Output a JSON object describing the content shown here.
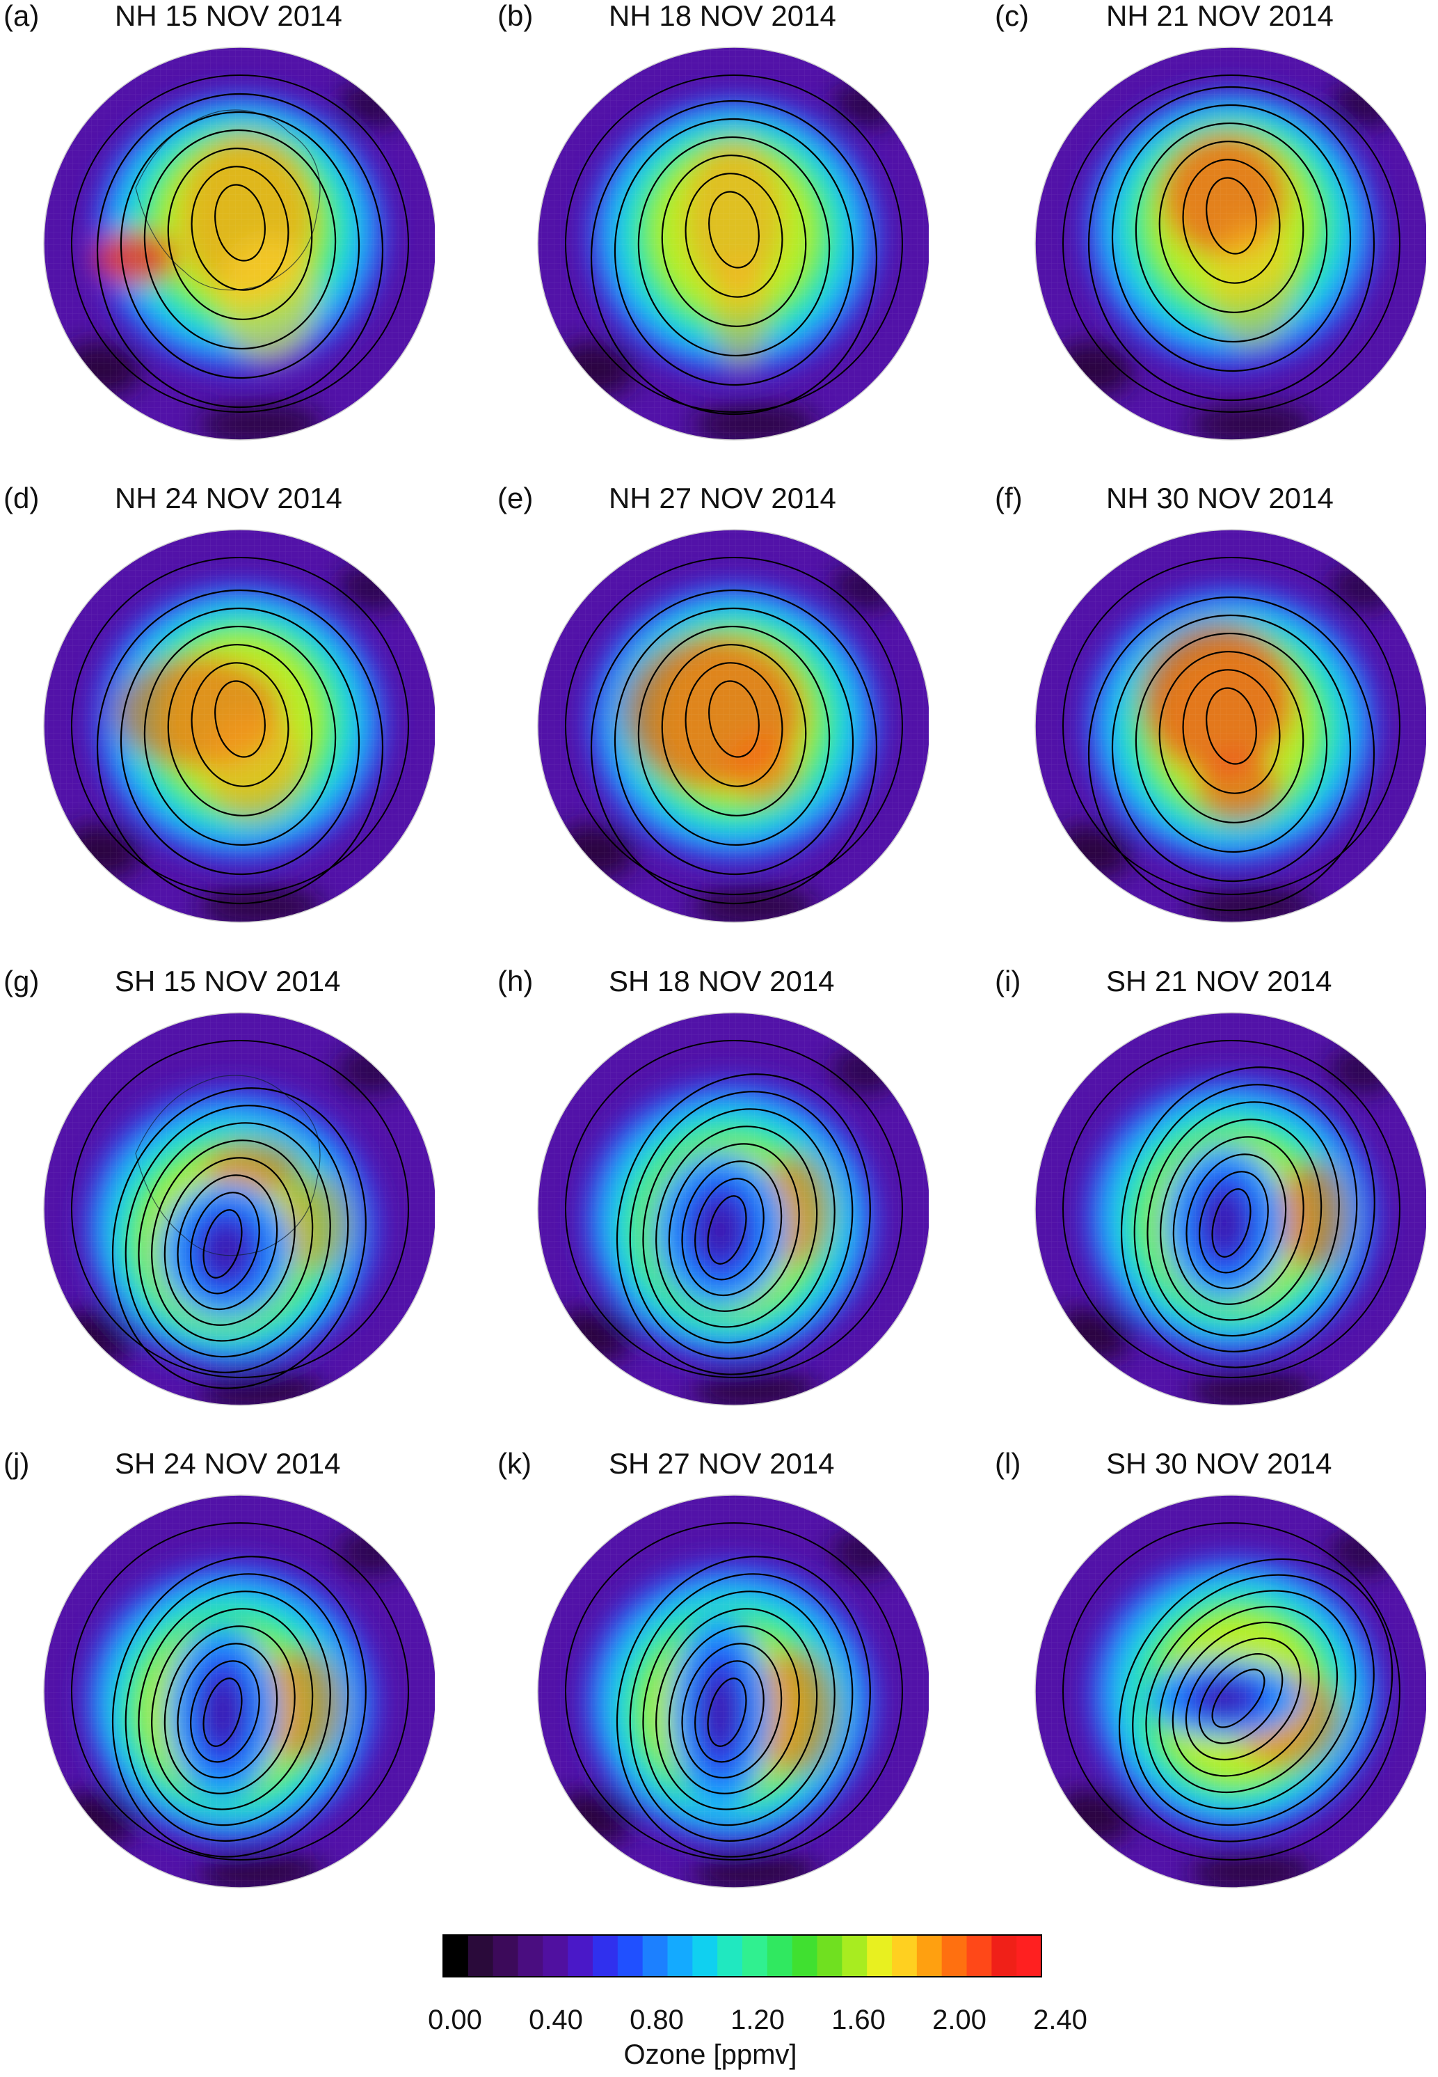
{
  "figure": {
    "panels": [
      {
        "letter": "(a)",
        "title": "NH 15 NOV 2014",
        "hemisphere": "NH",
        "variant": "a"
      },
      {
        "letter": "(b)",
        "title": "NH 18 NOV 2014",
        "hemisphere": "NH",
        "variant": "b"
      },
      {
        "letter": "(c)",
        "title": "NH 21 NOV 2014",
        "hemisphere": "NH",
        "variant": "c"
      },
      {
        "letter": "(d)",
        "title": "NH 24 NOV 2014",
        "hemisphere": "NH",
        "variant": "d"
      },
      {
        "letter": "(e)",
        "title": "NH 27 NOV 2014",
        "hemisphere": "NH",
        "variant": "e"
      },
      {
        "letter": "(f)",
        "title": "NH 30 NOV 2014",
        "hemisphere": "NH",
        "variant": "f"
      },
      {
        "letter": "(g)",
        "title": "SH 15 NOV 2014",
        "hemisphere": "SH",
        "variant": "g"
      },
      {
        "letter": "(h)",
        "title": "SH 18 NOV 2014",
        "hemisphere": "SH",
        "variant": "h"
      },
      {
        "letter": "(i)",
        "title": "SH 21 NOV 2014",
        "hemisphere": "SH",
        "variant": "i"
      },
      {
        "letter": "(j)",
        "title": "SH 24 NOV 2014",
        "hemisphere": "SH",
        "variant": "j"
      },
      {
        "letter": "(k)",
        "title": "SH 27 NOV 2014",
        "hemisphere": "SH",
        "variant": "k"
      },
      {
        "letter": "(l)",
        "title": "SH 30 NOV 2014",
        "hemisphere": "SH",
        "variant": "l"
      }
    ],
    "colorbar": {
      "label": "Ozone [ppmv]",
      "min": 0.0,
      "max": 2.4,
      "step": 0.1,
      "tick_labels": [
        "0.00",
        "0.40",
        "0.80",
        "1.20",
        "1.60",
        "2.00",
        "2.40"
      ],
      "colors": [
        "#000000",
        "#2a0a3a",
        "#3c0a5a",
        "#4a0d80",
        "#5010a0",
        "#4a18c8",
        "#3030ee",
        "#2050ff",
        "#1c80ff",
        "#14aaff",
        "#10d0f0",
        "#20e8c0",
        "#30f090",
        "#30e860",
        "#40e030",
        "#70e020",
        "#a8ec20",
        "#e8f020",
        "#ffd020",
        "#ffa010",
        "#ff7010",
        "#ff4818",
        "#f02018",
        "#ff2020"
      ]
    }
  }
}
